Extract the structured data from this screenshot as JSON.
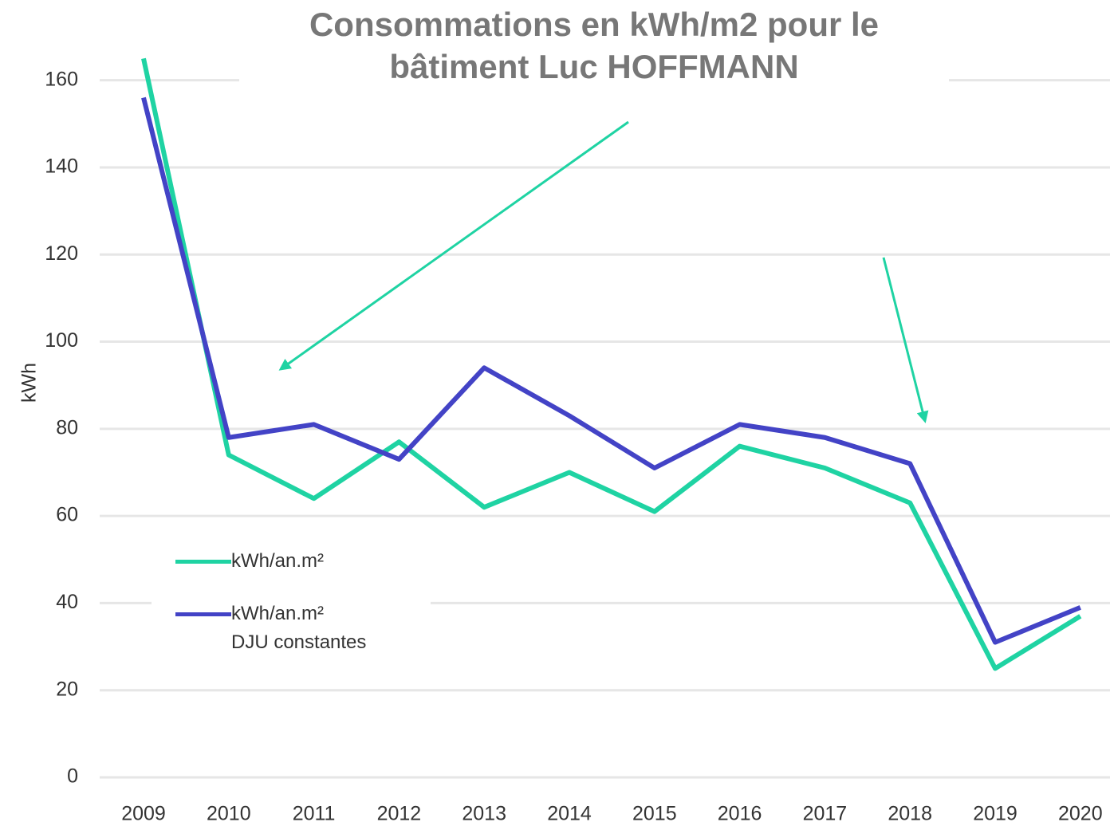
{
  "chart_data": {
    "type": "line",
    "title": "Consommations en kWh/m2 pour le\nbâtiment Luc HOFFMANN",
    "y_label": "kWh",
    "categories": [
      "2009",
      "2010",
      "2011",
      "2012",
      "2013",
      "2014",
      "2015",
      "2016",
      "2017",
      "2018",
      "2019",
      "2020"
    ],
    "series": [
      {
        "name": "kWh/an.m²",
        "color": "#1fd3a3",
        "values": [
          165,
          74,
          64,
          77,
          62,
          70,
          61,
          76,
          71,
          63,
          25,
          37
        ]
      },
      {
        "name": "kWh/an.m²\nDJU constantes",
        "color": "#4343c6",
        "values": [
          156,
          78,
          81,
          73,
          94,
          83,
          71,
          81,
          78,
          72,
          31,
          39
        ]
      }
    ],
    "ylim": [
      0,
      170
    ],
    "yticks": [
      0,
      20,
      40,
      60,
      80,
      100,
      120,
      140,
      160
    ],
    "grid": true
  }
}
